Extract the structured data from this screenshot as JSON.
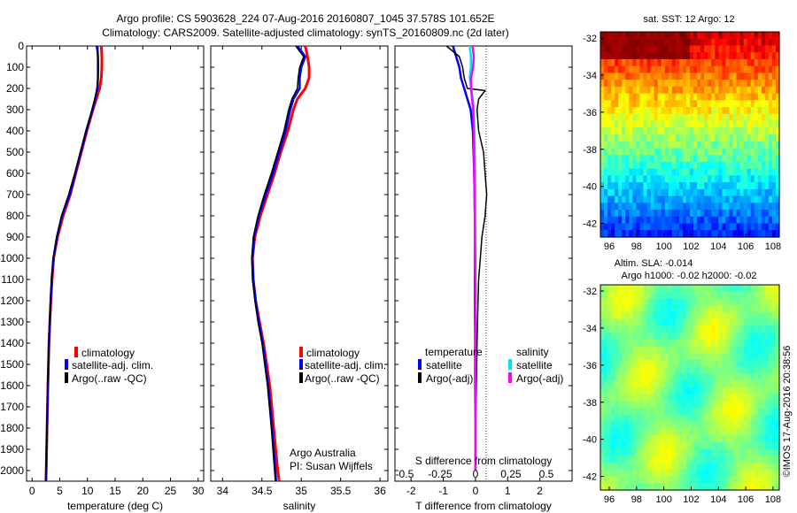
{
  "header": {
    "line1": "Argo profile: CS 5903628_224 07-Aug-2016 20160807_1045 37.578S 101.652E",
    "line2": "Climatology: CARS2009. Satellite-adjusted climatology: synTS_20160809.nc (2d later)"
  },
  "colors": {
    "climatology": "#ff0000",
    "satellite": "#0000ff",
    "argo": "#000000",
    "sal_satellite": "#00e5e5",
    "sal_argo": "#ff00ff"
  },
  "depth_axis": {
    "ylim": [
      0,
      2050
    ],
    "ticks": [
      "0",
      "100",
      "200",
      "300",
      "400",
      "500",
      "600",
      "700",
      "800",
      "900",
      "1000",
      "1100",
      "1200",
      "1300",
      "1400",
      "1500",
      "1600",
      "1700",
      "1800",
      "1900",
      "2000"
    ]
  },
  "legend": {
    "climatology": "climatology",
    "satellite_adj": "satellite-adj. clim.",
    "argo": "Argo(..raw -QC)"
  },
  "credit": {
    "line1": "Argo Australia",
    "line2": "PI: Susan Wijffels"
  },
  "diff_legend": {
    "temp_header": "temperature",
    "sal_header": "salinity",
    "satellite": "satellite",
    "argo": "Argo(-adj)"
  },
  "map1": {
    "title": "sat. SST: 12 Argo: 12",
    "yticks": [
      "-32",
      "-34",
      "-36",
      "-38",
      "-40",
      "-42"
    ],
    "xticks": [
      "96",
      "98",
      "100",
      "102",
      "104",
      "106",
      "108"
    ]
  },
  "map2": {
    "title1": "Altim. SLA: -0.014",
    "title2": "Argo h1000: -0.02 h2000: -0.02",
    "yticks": [
      "-32",
      "-34",
      "-36",
      "-38",
      "-40",
      "-42"
    ],
    "xticks": [
      "96",
      "98",
      "100",
      "102",
      "104",
      "106",
      "108"
    ]
  },
  "footer": "©IMOS 17-Aug-2016 20:38:56",
  "chart_data": [
    {
      "type": "line",
      "xlabel": "temperature (deg C)",
      "xlim": [
        -1,
        31
      ],
      "xticks": [
        "0",
        "5",
        "10",
        "15",
        "20",
        "25",
        "30"
      ],
      "series": [
        {
          "name": "climatology",
          "depth": [
            0,
            50,
            100,
            150,
            200,
            250,
            300,
            400,
            500,
            600,
            700,
            800,
            900,
            1000,
            1100,
            1200,
            1300,
            1400,
            1600,
            1800,
            2000,
            2050
          ],
          "values": [
            12.5,
            12.6,
            12.6,
            12.5,
            12.2,
            11.6,
            11.0,
            9.9,
            8.9,
            7.9,
            6.9,
            5.6,
            4.6,
            3.9,
            3.6,
            3.4,
            3.2,
            3.05,
            2.85,
            2.7,
            2.55,
            2.5
          ]
        },
        {
          "name": "satellite-adj. clim.",
          "depth": [
            0,
            50,
            100,
            150,
            200,
            250,
            300,
            400,
            500,
            600,
            700,
            800,
            900,
            1000,
            1100,
            1200,
            1300,
            1400,
            1600,
            1800,
            2000,
            2050
          ],
          "values": [
            11.8,
            11.9,
            11.9,
            11.9,
            11.8,
            11.4,
            10.9,
            9.8,
            8.8,
            7.8,
            6.8,
            5.4,
            4.5,
            3.85,
            3.55,
            3.35,
            3.2,
            3.05,
            2.85,
            2.7,
            2.55,
            2.5
          ]
        },
        {
          "name": "Argo(..raw -QC)",
          "depth": [
            0,
            50,
            100,
            150,
            200,
            250,
            300,
            400,
            500,
            600,
            700,
            800,
            900,
            1000,
            1100,
            1200,
            1300,
            1400,
            1600,
            1800,
            2000,
            2050
          ],
          "values": [
            11.6,
            11.9,
            12.0,
            11.9,
            11.7,
            11.3,
            10.8,
            9.7,
            8.7,
            7.7,
            6.6,
            5.3,
            4.4,
            3.8,
            3.5,
            3.3,
            3.15,
            3.0,
            2.8,
            2.65,
            2.5,
            2.45
          ]
        }
      ]
    },
    {
      "type": "line",
      "xlabel": "salinity",
      "xlim": [
        33.85,
        36.1
      ],
      "xticks": [
        "34",
        "34.5",
        "35",
        "35.5",
        "36"
      ],
      "series": [
        {
          "name": "climatology",
          "depth": [
            0,
            50,
            100,
            150,
            200,
            250,
            300,
            400,
            500,
            600,
            700,
            800,
            900,
            1000,
            1100,
            1200,
            1300,
            1400,
            1600,
            1800,
            2000,
            2050
          ],
          "values": [
            35.05,
            35.08,
            35.1,
            35.1,
            35.05,
            34.95,
            34.9,
            34.83,
            34.74,
            34.66,
            34.57,
            34.48,
            34.41,
            34.38,
            34.39,
            34.42,
            34.47,
            34.52,
            34.6,
            34.65,
            34.7,
            34.72
          ]
        },
        {
          "name": "satellite-adj. clim.",
          "depth": [
            0,
            50,
            100,
            150,
            200,
            250,
            300,
            400,
            500,
            600,
            700,
            800,
            900,
            1000,
            1100,
            1200,
            1300,
            1400,
            1600,
            1800,
            2000,
            2050
          ],
          "values": [
            34.95,
            35.05,
            35.0,
            34.98,
            34.98,
            34.9,
            34.86,
            34.8,
            34.72,
            34.64,
            34.55,
            34.46,
            34.4,
            34.38,
            34.39,
            34.42,
            34.46,
            34.51,
            34.58,
            34.63,
            34.67,
            34.68
          ]
        },
        {
          "name": "Argo(..raw -QC)",
          "depth": [
            0,
            50,
            100,
            150,
            200,
            250,
            300,
            400,
            500,
            600,
            700,
            800,
            900,
            1000,
            1100,
            1200,
            1300,
            1400,
            1600,
            1800,
            2000,
            2050
          ],
          "values": [
            34.93,
            35.03,
            34.98,
            34.96,
            34.95,
            34.88,
            34.84,
            34.78,
            34.7,
            34.62,
            34.53,
            34.45,
            34.39,
            34.37,
            34.38,
            34.41,
            34.45,
            34.5,
            34.57,
            34.62,
            34.66,
            34.67
          ]
        }
      ]
    },
    {
      "type": "line",
      "xlabel": "T difference from climatology",
      "xlabel_top": "S difference from climatology",
      "xlim": [
        -2.5,
        3.0
      ],
      "xticks": [
        "-2",
        "-1",
        "0",
        "1",
        "2"
      ],
      "xticks_top": [
        "-0.5",
        "-0.25",
        "0",
        "0.25",
        "0.5"
      ],
      "series": [
        {
          "name": "temperature satellite",
          "depth": [
            0,
            50,
            100,
            150,
            200,
            250,
            300,
            400,
            600,
            800,
            1000,
            1200,
            1400,
            1600,
            1800,
            2000
          ],
          "values": [
            -0.7,
            -0.6,
            -0.5,
            -0.45,
            -0.35,
            -0.25,
            -0.15,
            -0.08,
            -0.04,
            -0.02,
            -0.02,
            -0.02,
            -0.01,
            -0.01,
            0.0,
            0.0
          ]
        },
        {
          "name": "temperature Argo(-adj)",
          "depth": [
            0,
            50,
            100,
            150,
            200,
            210,
            250,
            300,
            400,
            500,
            600,
            700,
            800,
            900,
            1000,
            1100,
            1200,
            1400,
            1600,
            1800,
            2000
          ],
          "values": [
            -0.9,
            -0.5,
            -0.4,
            -0.35,
            -0.25,
            0.3,
            0.1,
            0.05,
            0.1,
            0.25,
            0.3,
            0.35,
            0.3,
            0.2,
            0.15,
            0.1,
            0.08,
            0.05,
            0.03,
            0.01,
            0.0
          ]
        },
        {
          "name": "salinity satellite",
          "depth": [
            0,
            50,
            100,
            150,
            200,
            250,
            300,
            400,
            600,
            800,
            1000,
            1200,
            1400,
            1600,
            1800,
            2000
          ],
          "values": [
            -0.1,
            -0.08,
            -0.08,
            -0.1,
            -0.07,
            -0.05,
            -0.03,
            -0.02,
            -0.01,
            -0.01,
            -0.005,
            0.0,
            0.0,
            0.0,
            0.0,
            0.0
          ]
        },
        {
          "name": "salinity Argo(-adj)",
          "depth": [
            0,
            50,
            100,
            150,
            200,
            250,
            300,
            400,
            600,
            800,
            1000,
            1200,
            1400,
            1600,
            1800,
            2000
          ],
          "values": [
            -0.05,
            -0.03,
            -0.04,
            -0.08,
            -0.08,
            -0.06,
            -0.04,
            -0.03,
            -0.02,
            -0.01,
            -0.005,
            0.0,
            0.0,
            0.0,
            0.0,
            0.0
          ]
        }
      ]
    }
  ]
}
